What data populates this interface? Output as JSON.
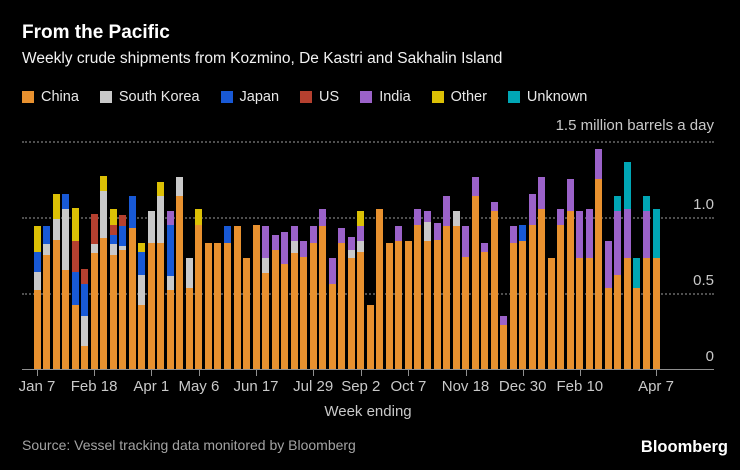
{
  "header": {
    "title": "From the Pacific",
    "subtitle": "Weekly crude shipments from Kozmino, De Kastri and Sakhalin Island"
  },
  "footer": {
    "source": "Source: Vessel tracking data monitored by Bloomberg",
    "logo": "Bloomberg"
  },
  "colors": {
    "background": "#000000",
    "title_text": "#FFFFFF",
    "axis_text": "#C9C9C9",
    "grid": "#4F4F4F",
    "axis_line": "#8F8F8F",
    "source_text": "#A3A3A3"
  },
  "chart_data": {
    "type": "bar",
    "stacked": true,
    "title": "From the Pacific",
    "subtitle": "Weekly crude shipments from Kozmino, De Kastri and Sakhalin Island",
    "unit_label": "1.5 million barrels a day",
    "xlabel": "Week ending",
    "ylim": [
      0,
      1.5
    ],
    "grid": "horizontal-dotted",
    "legend_position": "top",
    "num_bars": 66,
    "yticks": [
      {
        "value": 1.0,
        "label": "1.0"
      },
      {
        "value": 0.5,
        "label": "0.5"
      },
      {
        "value": 0.0,
        "label": "0"
      }
    ],
    "gridline_values": [
      1.5,
      1.0,
      0.5
    ],
    "x_ticks": [
      {
        "label": "Jan 7",
        "bar_index": 0
      },
      {
        "label": "Feb 18",
        "bar_index": 6
      },
      {
        "label": "Apr 1",
        "bar_index": 12
      },
      {
        "label": "May 6",
        "bar_index": 17
      },
      {
        "label": "Jun 17",
        "bar_index": 23
      },
      {
        "label": "Jul 29",
        "bar_index": 29
      },
      {
        "label": "Sep 2",
        "bar_index": 34
      },
      {
        "label": "Oct 7",
        "bar_index": 39
      },
      {
        "label": "Nov 18",
        "bar_index": 45
      },
      {
        "label": "Dec 30",
        "bar_index": 51
      },
      {
        "label": "Feb 10",
        "bar_index": 57
      },
      {
        "label": "Apr 7",
        "bar_index": 65
      }
    ],
    "series": [
      {
        "name": "China",
        "color": "#E8912F",
        "values": [
          0.52,
          0.75,
          0.85,
          0.65,
          0.42,
          0.15,
          0.76,
          0.86,
          0.75,
          0.78,
          0.93,
          0.42,
          0.83,
          0.83,
          0.52,
          1.14,
          0.53,
          0.95,
          0.83,
          0.83,
          0.83,
          0.94,
          0.73,
          0.95,
          0.63,
          0.78,
          0.69,
          0.76,
          0.74,
          0.83,
          0.94,
          0.56,
          0.83,
          0.73,
          0.77,
          0.42,
          1.05,
          0.83,
          0.84,
          0.84,
          0.95,
          0.84,
          0.85,
          0.94,
          0.94,
          0.74,
          1.14,
          0.77,
          1.04,
          0.29,
          0.83,
          0.84,
          0.95,
          1.05,
          0.73,
          0.95,
          1.04,
          0.73,
          0.73,
          1.25,
          0.53,
          0.62,
          0.73,
          0.53,
          0.73,
          0.73
        ]
      },
      {
        "name": "South Korea",
        "color": "#C9C9C9",
        "values": [
          0.12,
          0.07,
          0.14,
          0.4,
          0,
          0.2,
          0.06,
          0.31,
          0.07,
          0.03,
          0,
          0.2,
          0.21,
          0.31,
          0.09,
          0.12,
          0.2,
          0,
          0,
          0,
          0,
          0,
          0,
          0,
          0.1,
          0,
          0,
          0.08,
          0,
          0,
          0,
          0,
          0,
          0.05,
          0.07,
          0,
          0,
          0,
          0,
          0,
          0,
          0.13,
          0,
          0,
          0.1,
          0,
          0,
          0,
          0,
          0,
          0,
          0,
          0,
          0,
          0,
          0,
          0,
          0,
          0,
          0,
          0,
          0,
          0,
          0,
          0,
          0
        ]
      },
      {
        "name": "Japan",
        "color": "#1859D6",
        "values": [
          0.13,
          0.12,
          0,
          0.1,
          0.22,
          0.21,
          0,
          0,
          0.06,
          0.13,
          0.21,
          0.15,
          0,
          0,
          0.34,
          0,
          0,
          0,
          0,
          0,
          0.11,
          0,
          0,
          0,
          0,
          0,
          0,
          0,
          0,
          0,
          0,
          0,
          0,
          0,
          0,
          0,
          0,
          0,
          0,
          0,
          0,
          0,
          0,
          0,
          0,
          0,
          0,
          0,
          0,
          0,
          0,
          0.11,
          0,
          0,
          0,
          0,
          0,
          0,
          0,
          0,
          0,
          0,
          0,
          0,
          0,
          0
        ]
      },
      {
        "name": "US",
        "color": "#B5402F",
        "values": [
          0,
          0,
          0,
          0,
          0.2,
          0.1,
          0.2,
          0,
          0.07,
          0.07,
          0,
          0,
          0,
          0,
          0,
          0,
          0,
          0,
          0,
          0,
          0,
          0,
          0,
          0,
          0,
          0,
          0,
          0,
          0,
          0,
          0,
          0,
          0,
          0,
          0,
          0,
          0,
          0,
          0,
          0,
          0,
          0,
          0,
          0,
          0,
          0,
          0,
          0,
          0,
          0,
          0,
          0,
          0,
          0,
          0,
          0,
          0,
          0,
          0,
          0,
          0,
          0,
          0,
          0,
          0,
          0
        ]
      },
      {
        "name": "India",
        "color": "#9B62C9",
        "values": [
          0,
          0,
          0,
          0,
          0,
          0,
          0,
          0,
          0,
          0,
          0,
          0,
          0,
          0,
          0.09,
          0,
          0,
          0,
          0,
          0,
          0,
          0,
          0,
          0,
          0.21,
          0.1,
          0.21,
          0.1,
          0.1,
          0.11,
          0.11,
          0.17,
          0.1,
          0.09,
          0.1,
          0,
          0,
          0,
          0.1,
          0,
          0.1,
          0.07,
          0.11,
          0.2,
          0,
          0.2,
          0.12,
          0.06,
          0.06,
          0.06,
          0.11,
          0,
          0.2,
          0.21,
          0,
          0.1,
          0.21,
          0.31,
          0.32,
          0.2,
          0.31,
          0.42,
          0.32,
          0,
          0.31,
          0
        ]
      },
      {
        "name": "Other",
        "color": "#DCC005",
        "values": [
          0.17,
          0,
          0.16,
          0,
          0.22,
          0,
          0,
          0.1,
          0.1,
          0,
          0,
          0.06,
          0,
          0.09,
          0,
          0,
          0,
          0.1,
          0,
          0,
          0,
          0,
          0,
          0,
          0,
          0,
          0,
          0,
          0,
          0,
          0,
          0,
          0,
          0,
          0.1,
          0,
          0,
          0,
          0,
          0,
          0,
          0,
          0,
          0,
          0,
          0,
          0,
          0,
          0,
          0,
          0,
          0,
          0,
          0,
          0,
          0,
          0,
          0,
          0,
          0,
          0,
          0,
          0,
          0,
          0,
          0
        ]
      },
      {
        "name": "Unknown",
        "color": "#00A6B5",
        "values": [
          0,
          0,
          0,
          0,
          0,
          0,
          0,
          0,
          0,
          0,
          0,
          0,
          0,
          0,
          0,
          0,
          0,
          0,
          0,
          0,
          0,
          0,
          0,
          0,
          0,
          0,
          0,
          0,
          0,
          0,
          0,
          0,
          0,
          0,
          0,
          0,
          0,
          0,
          0,
          0,
          0,
          0,
          0,
          0,
          0,
          0,
          0,
          0,
          0,
          0,
          0,
          0,
          0,
          0,
          0,
          0,
          0,
          0,
          0,
          0,
          0,
          0.1,
          0.31,
          0.2,
          0.1,
          0.32
        ]
      }
    ]
  }
}
